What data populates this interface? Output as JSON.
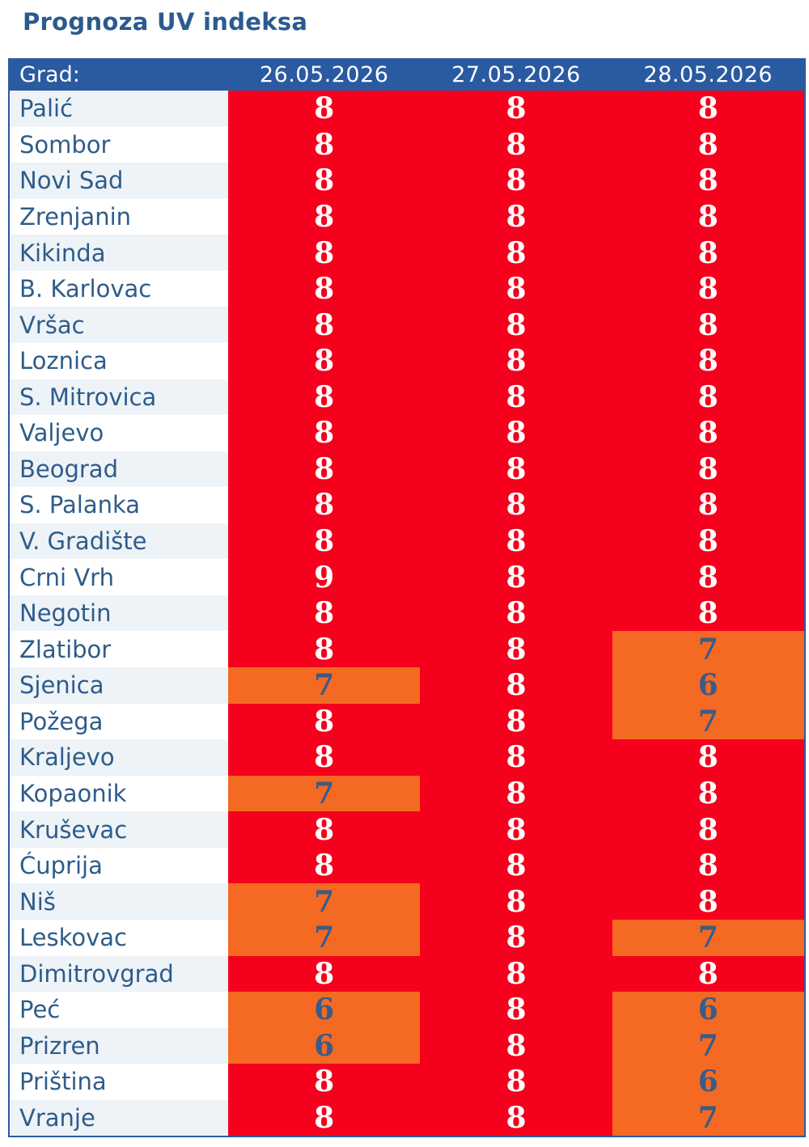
{
  "chart_data": {
    "type": "table",
    "title": "Prognoza UV indeksa",
    "columns": [
      "Grad:",
      "26.05.2026",
      "27.05.2026",
      "28.05.2026"
    ],
    "rows": [
      {
        "city": "Palić",
        "values": [
          8,
          8,
          8
        ]
      },
      {
        "city": "Sombor",
        "values": [
          8,
          8,
          8
        ]
      },
      {
        "city": "Novi Sad",
        "values": [
          8,
          8,
          8
        ]
      },
      {
        "city": "Zrenjanin",
        "values": [
          8,
          8,
          8
        ]
      },
      {
        "city": "Kikinda",
        "values": [
          8,
          8,
          8
        ]
      },
      {
        "city": "B. Karlovac",
        "values": [
          8,
          8,
          8
        ]
      },
      {
        "city": "Vršac",
        "values": [
          8,
          8,
          8
        ]
      },
      {
        "city": "Loznica",
        "values": [
          8,
          8,
          8
        ]
      },
      {
        "city": "S. Mitrovica",
        "values": [
          8,
          8,
          8
        ]
      },
      {
        "city": "Valjevo",
        "values": [
          8,
          8,
          8
        ]
      },
      {
        "city": "Beograd",
        "values": [
          8,
          8,
          8
        ]
      },
      {
        "city": "S. Palanka",
        "values": [
          8,
          8,
          8
        ]
      },
      {
        "city": "V. Gradište",
        "values": [
          8,
          8,
          8
        ]
      },
      {
        "city": "Crni Vrh",
        "values": [
          9,
          8,
          8
        ]
      },
      {
        "city": "Negotin",
        "values": [
          8,
          8,
          8
        ]
      },
      {
        "city": "Zlatibor",
        "values": [
          8,
          8,
          7
        ]
      },
      {
        "city": "Sjenica",
        "values": [
          7,
          8,
          6
        ]
      },
      {
        "city": "Požega",
        "values": [
          8,
          8,
          7
        ]
      },
      {
        "city": "Kraljevo",
        "values": [
          8,
          8,
          8
        ]
      },
      {
        "city": "Kopaonik",
        "values": [
          7,
          8,
          8
        ]
      },
      {
        "city": "Kruševac",
        "values": [
          8,
          8,
          8
        ]
      },
      {
        "city": "Ćuprija",
        "values": [
          8,
          8,
          8
        ]
      },
      {
        "city": "Niš",
        "values": [
          7,
          8,
          8
        ]
      },
      {
        "city": "Leskovac",
        "values": [
          7,
          8,
          7
        ]
      },
      {
        "city": "Dimitrovgrad",
        "values": [
          8,
          8,
          8
        ]
      },
      {
        "city": "Peć",
        "values": [
          6,
          8,
          6
        ]
      },
      {
        "city": "Prizren",
        "values": [
          6,
          8,
          7
        ]
      },
      {
        "city": "Priština",
        "values": [
          8,
          8,
          6
        ]
      },
      {
        "city": "Vranje",
        "values": [
          8,
          8,
          7
        ]
      }
    ],
    "colors": {
      "very_high": "#f5001d",
      "high": "#f56a22",
      "header": "#2a5aa0",
      "city_text": "#2e5c8a"
    }
  }
}
